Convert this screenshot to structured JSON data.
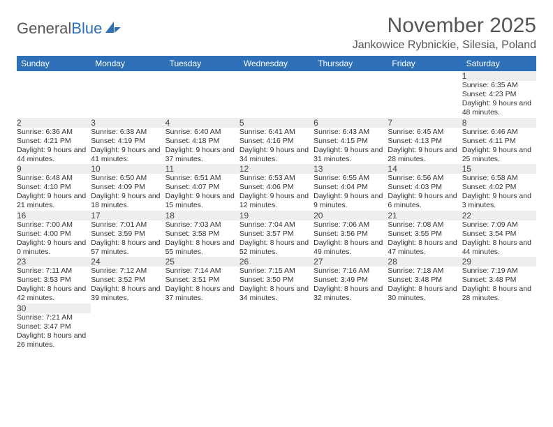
{
  "logo": {
    "text_general": "General",
    "text_blue": "Blue"
  },
  "title": "November 2025",
  "location": "Jankowice Rybnickie, Silesia, Poland",
  "colors": {
    "header_bg": "#2d70b8",
    "header_text": "#ffffff",
    "daynum_bg": "#eeeeee",
    "row_border": "#2d70b8",
    "page_bg": "#ffffff",
    "text": "#333333",
    "title_text": "#555555"
  },
  "weekdays": [
    "Sunday",
    "Monday",
    "Tuesday",
    "Wednesday",
    "Thursday",
    "Friday",
    "Saturday"
  ],
  "weeks": [
    {
      "nums": [
        "",
        "",
        "",
        "",
        "",
        "",
        "1"
      ],
      "cells": [
        "",
        "",
        "",
        "",
        "",
        "",
        "Sunrise: 6:35 AM\nSunset: 4:23 PM\nDaylight: 9 hours and 48 minutes."
      ]
    },
    {
      "nums": [
        "2",
        "3",
        "4",
        "5",
        "6",
        "7",
        "8"
      ],
      "cells": [
        "Sunrise: 6:36 AM\nSunset: 4:21 PM\nDaylight: 9 hours and 44 minutes.",
        "Sunrise: 6:38 AM\nSunset: 4:19 PM\nDaylight: 9 hours and 41 minutes.",
        "Sunrise: 6:40 AM\nSunset: 4:18 PM\nDaylight: 9 hours and 37 minutes.",
        "Sunrise: 6:41 AM\nSunset: 4:16 PM\nDaylight: 9 hours and 34 minutes.",
        "Sunrise: 6:43 AM\nSunset: 4:15 PM\nDaylight: 9 hours and 31 minutes.",
        "Sunrise: 6:45 AM\nSunset: 4:13 PM\nDaylight: 9 hours and 28 minutes.",
        "Sunrise: 6:46 AM\nSunset: 4:11 PM\nDaylight: 9 hours and 25 minutes."
      ]
    },
    {
      "nums": [
        "9",
        "10",
        "11",
        "12",
        "13",
        "14",
        "15"
      ],
      "cells": [
        "Sunrise: 6:48 AM\nSunset: 4:10 PM\nDaylight: 9 hours and 21 minutes.",
        "Sunrise: 6:50 AM\nSunset: 4:09 PM\nDaylight: 9 hours and 18 minutes.",
        "Sunrise: 6:51 AM\nSunset: 4:07 PM\nDaylight: 9 hours and 15 minutes.",
        "Sunrise: 6:53 AM\nSunset: 4:06 PM\nDaylight: 9 hours and 12 minutes.",
        "Sunrise: 6:55 AM\nSunset: 4:04 PM\nDaylight: 9 hours and 9 minutes.",
        "Sunrise: 6:56 AM\nSunset: 4:03 PM\nDaylight: 9 hours and 6 minutes.",
        "Sunrise: 6:58 AM\nSunset: 4:02 PM\nDaylight: 9 hours and 3 minutes."
      ]
    },
    {
      "nums": [
        "16",
        "17",
        "18",
        "19",
        "20",
        "21",
        "22"
      ],
      "cells": [
        "Sunrise: 7:00 AM\nSunset: 4:00 PM\nDaylight: 9 hours and 0 minutes.",
        "Sunrise: 7:01 AM\nSunset: 3:59 PM\nDaylight: 8 hours and 57 minutes.",
        "Sunrise: 7:03 AM\nSunset: 3:58 PM\nDaylight: 8 hours and 55 minutes.",
        "Sunrise: 7:04 AM\nSunset: 3:57 PM\nDaylight: 8 hours and 52 minutes.",
        "Sunrise: 7:06 AM\nSunset: 3:56 PM\nDaylight: 8 hours and 49 minutes.",
        "Sunrise: 7:08 AM\nSunset: 3:55 PM\nDaylight: 8 hours and 47 minutes.",
        "Sunrise: 7:09 AM\nSunset: 3:54 PM\nDaylight: 8 hours and 44 minutes."
      ]
    },
    {
      "nums": [
        "23",
        "24",
        "25",
        "26",
        "27",
        "28",
        "29"
      ],
      "cells": [
        "Sunrise: 7:11 AM\nSunset: 3:53 PM\nDaylight: 8 hours and 42 minutes.",
        "Sunrise: 7:12 AM\nSunset: 3:52 PM\nDaylight: 8 hours and 39 minutes.",
        "Sunrise: 7:14 AM\nSunset: 3:51 PM\nDaylight: 8 hours and 37 minutes.",
        "Sunrise: 7:15 AM\nSunset: 3:50 PM\nDaylight: 8 hours and 34 minutes.",
        "Sunrise: 7:16 AM\nSunset: 3:49 PM\nDaylight: 8 hours and 32 minutes.",
        "Sunrise: 7:18 AM\nSunset: 3:48 PM\nDaylight: 8 hours and 30 minutes.",
        "Sunrise: 7:19 AM\nSunset: 3:48 PM\nDaylight: 8 hours and 28 minutes."
      ]
    },
    {
      "nums": [
        "30",
        "",
        "",
        "",
        "",
        "",
        ""
      ],
      "cells": [
        "Sunrise: 7:21 AM\nSunset: 3:47 PM\nDaylight: 8 hours and 26 minutes.",
        "",
        "",
        "",
        "",
        "",
        ""
      ]
    }
  ]
}
